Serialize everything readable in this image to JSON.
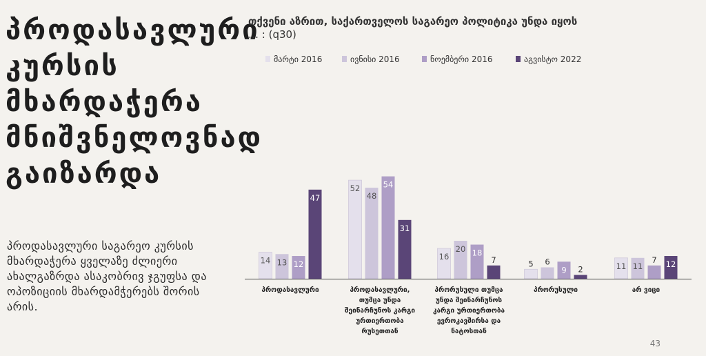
{
  "slide": {
    "headline": [
      "პროდასავლური",
      "კურსის",
      "მხარდაჭერა",
      "მნიშვნელოვნად",
      "გაიზარდა"
    ],
    "body": "პროდასავლური საგარეო კურსის მხარდაჭერა ყველაზე ძლიერი ახალგაზრდა ასაკობრივ ჯგუფსა და ოპოზიციის მხარდამჭერებს შორის არის.",
    "page_number": "43"
  },
  "chart_data": {
    "type": "bar",
    "title": "თქვენი აზრით, საქართველოს საგარეო პოლიტიკა უნდა იყოს",
    "subtitle": "… : (q30)",
    "categories": [
      [
        "პროდასავლური"
      ],
      [
        "პროდასავლური,",
        "თუმცა უნდა",
        "შეინარჩუნოს კარგი",
        "ურთიერთობა",
        "რუსეთთან"
      ],
      [
        "პრორუსული თუმცა",
        "უნდა შეინარჩუნოს",
        "კარგი ურთიერთობა",
        "ევროკავშირსა და",
        "ნატოსთან"
      ],
      [
        "პრორუსული"
      ],
      [
        "არ ვიცი"
      ]
    ],
    "series": [
      {
        "name": "მარტი 2016",
        "color": "#e4e0ec",
        "values": [
          14,
          52,
          16,
          5,
          11
        ]
      },
      {
        "name": "ივნისი 2016",
        "color": "#cdc5db",
        "values": [
          13,
          48,
          20,
          6,
          11
        ]
      },
      {
        "name": "ნოემბერი 2016",
        "color": "#ae9ec6",
        "values": [
          12,
          54,
          18,
          9,
          7
        ]
      },
      {
        "name": "აგვისტო 2022",
        "color": "#5a4577",
        "values": [
          47,
          31,
          7,
          2,
          12
        ]
      }
    ],
    "label_colors": [
      "#555555",
      "#555555",
      "#ffffff",
      "#ffffff"
    ],
    "ylim": [
      0,
      60
    ],
    "grid": false,
    "legend": "top"
  }
}
